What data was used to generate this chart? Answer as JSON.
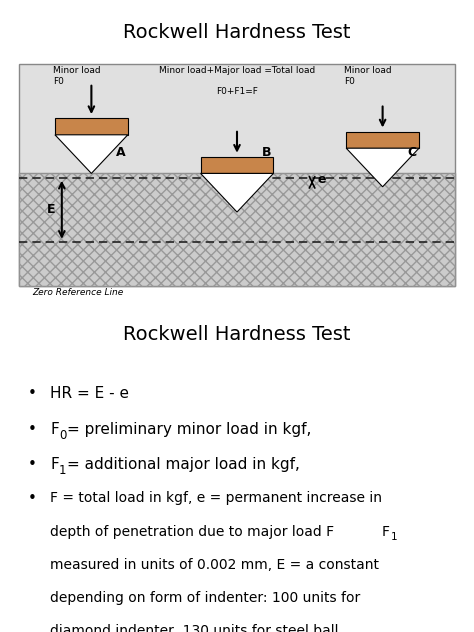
{
  "title_top": "Rockwell Hardness Test",
  "title_bottom": "Rockwell Hardness Test",
  "indenter_fill": "#c8854a",
  "label_A": "A",
  "label_B": "B",
  "label_C": "C",
  "label_E": "E",
  "label_e": "e",
  "label_minor_load_left": "Minor load\nF0",
  "label_minor_load_right": "Minor load\nF0",
  "label_middle_line1": "Minor load+Major load =Total load",
  "label_middle_line2": "F0+F1=F",
  "label_zero_ref": "Zero Reference Line",
  "white": "#ffffff",
  "black": "#000000",
  "panel_bg": "#e0e0e0",
  "material_bg": "#cccccc",
  "dashed_color": "#222222",
  "border_color": "#888888",
  "hatch_color": "#aaaaaa"
}
